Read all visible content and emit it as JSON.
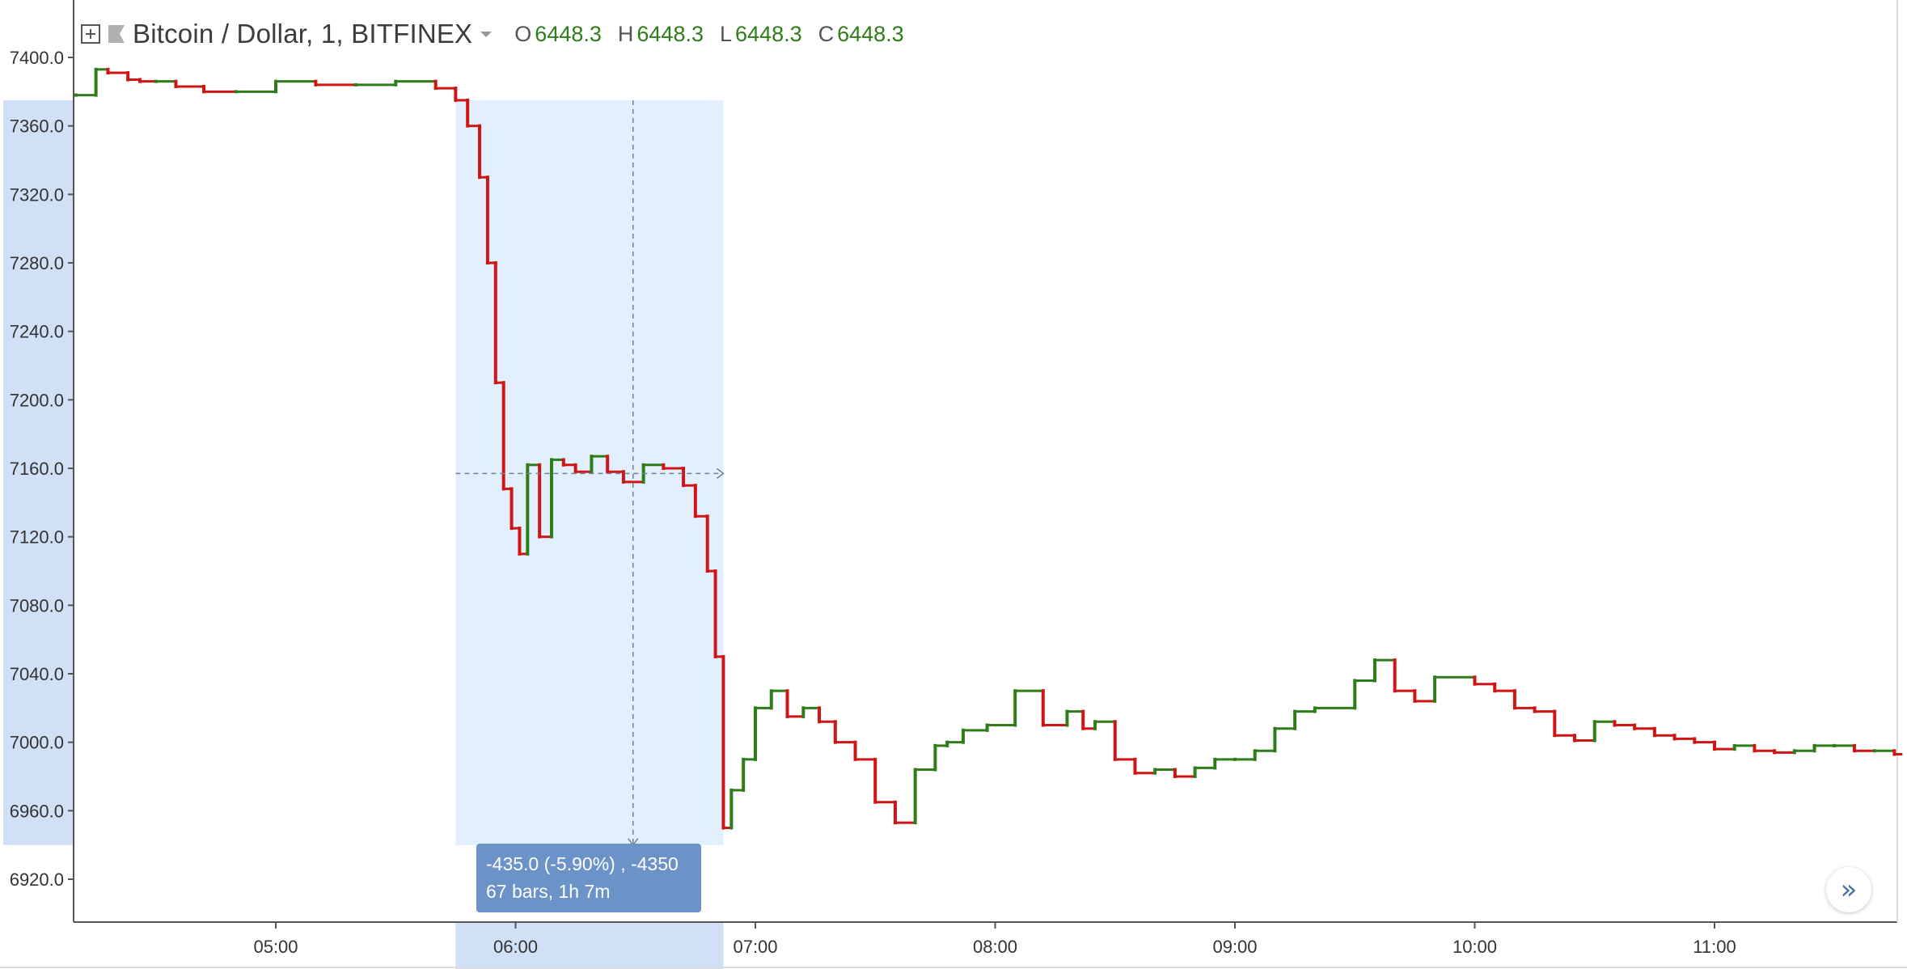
{
  "legend": {
    "symbol": "Bitcoin / Dollar, 1, BITFINEX",
    "open_label": "O",
    "open_value": "6448.3",
    "high_label": "H",
    "high_value": "6448.3",
    "low_label": "L",
    "low_value": "6448.3",
    "close_label": "C",
    "close_value": "6448.3"
  },
  "measure": {
    "line1": "-435.0 (-5.90%) , -4350",
    "line2": "67 bars, 1h 7m",
    "start_time": "05:45",
    "end_time": "06:52",
    "price_high": 7375,
    "price_low": 6940,
    "price_mid": 7157
  },
  "nav_button": {
    "icon": "double-chevron-right-icon",
    "glyph": "»"
  },
  "colors": {
    "up": "#2e7d19",
    "down": "#d01515",
    "wick": "#7fcf91",
    "highlight": "#e2efff",
    "axis_highlight": "#cfe0f7",
    "tooltip": "#6b93c8"
  },
  "chart_data": {
    "type": "line",
    "subtype": "stepped-candlestick",
    "x_start": "04:10",
    "x_end": "11:45",
    "ylim": [
      6900,
      7410
    ],
    "y_ticks": [
      "7400.0",
      "7360.0",
      "7320.0",
      "7280.0",
      "7240.0",
      "7200.0",
      "7160.0",
      "7120.0",
      "7080.0",
      "7040.0",
      "7000.0",
      "6960.0",
      "6920.0"
    ],
    "x_ticks": [
      "05:00",
      "06:00",
      "07:00",
      "08:00",
      "09:00",
      "10:00",
      "11:00"
    ],
    "series": [
      {
        "x": [
          "04:10",
          "04:15",
          "04:18",
          "04:23",
          "04:26",
          "04:30",
          "04:35",
          "04:42",
          "04:50",
          "05:00",
          "05:10",
          "05:20",
          "05:30",
          "05:40",
          "05:45",
          "05:48",
          "05:51",
          "05:53",
          "05:55",
          "05:57",
          "05:59",
          "06:01",
          "06:03",
          "06:06",
          "06:09",
          "06:12",
          "06:15",
          "06:19",
          "06:23",
          "06:27",
          "06:32",
          "06:37",
          "06:42",
          "06:45",
          "06:48",
          "06:50",
          "06:52",
          "06:54",
          "06:57",
          "07:00",
          "07:04",
          "07:08",
          "07:12",
          "07:16",
          "07:20",
          "07:25",
          "07:30",
          "07:35",
          "07:40",
          "07:45",
          "07:48",
          "07:52",
          "07:58",
          "08:05",
          "08:12",
          "08:18",
          "08:22",
          "08:25",
          "08:30",
          "08:35",
          "08:40",
          "08:45",
          "08:50",
          "08:55",
          "09:00",
          "09:05",
          "09:10",
          "09:15",
          "09:20",
          "09:30",
          "09:35",
          "09:40",
          "09:45",
          "09:50",
          "10:00",
          "10:05",
          "10:10",
          "10:15",
          "10:20",
          "10:25",
          "10:30",
          "10:35",
          "10:40",
          "10:45",
          "10:50",
          "10:55",
          "11:00",
          "11:05",
          "11:10",
          "11:15",
          "11:20",
          "11:25",
          "11:30",
          "11:35",
          "11:40",
          "11:45"
        ],
        "y": [
          7378,
          7393,
          7391,
          7387,
          7386,
          7386,
          7383,
          7380,
          7380,
          7386,
          7384,
          7384,
          7386,
          7382,
          7375,
          7360,
          7330,
          7280,
          7210,
          7148,
          7125,
          7110,
          7162,
          7120,
          7165,
          7162,
          7158,
          7167,
          7158,
          7152,
          7162,
          7160,
          7150,
          7132,
          7100,
          7050,
          6950,
          6972,
          6990,
          7020,
          7030,
          7015,
          7020,
          7012,
          7000,
          6990,
          6965,
          6953,
          6984,
          6998,
          7000,
          7007,
          7010,
          7030,
          7010,
          7018,
          7008,
          7012,
          6990,
          6982,
          6984,
          6980,
          6985,
          6990,
          6990,
          6995,
          7008,
          7018,
          7020,
          7036,
          7048,
          7030,
          7024,
          7038,
          7034,
          7030,
          7020,
          7018,
          7004,
          7001,
          7012,
          7010,
          7008,
          7004,
          7002,
          7000,
          6996,
          6998,
          6995,
          6994,
          6995,
          6998,
          6998,
          6995,
          6995,
          6993
        ]
      }
    ]
  }
}
